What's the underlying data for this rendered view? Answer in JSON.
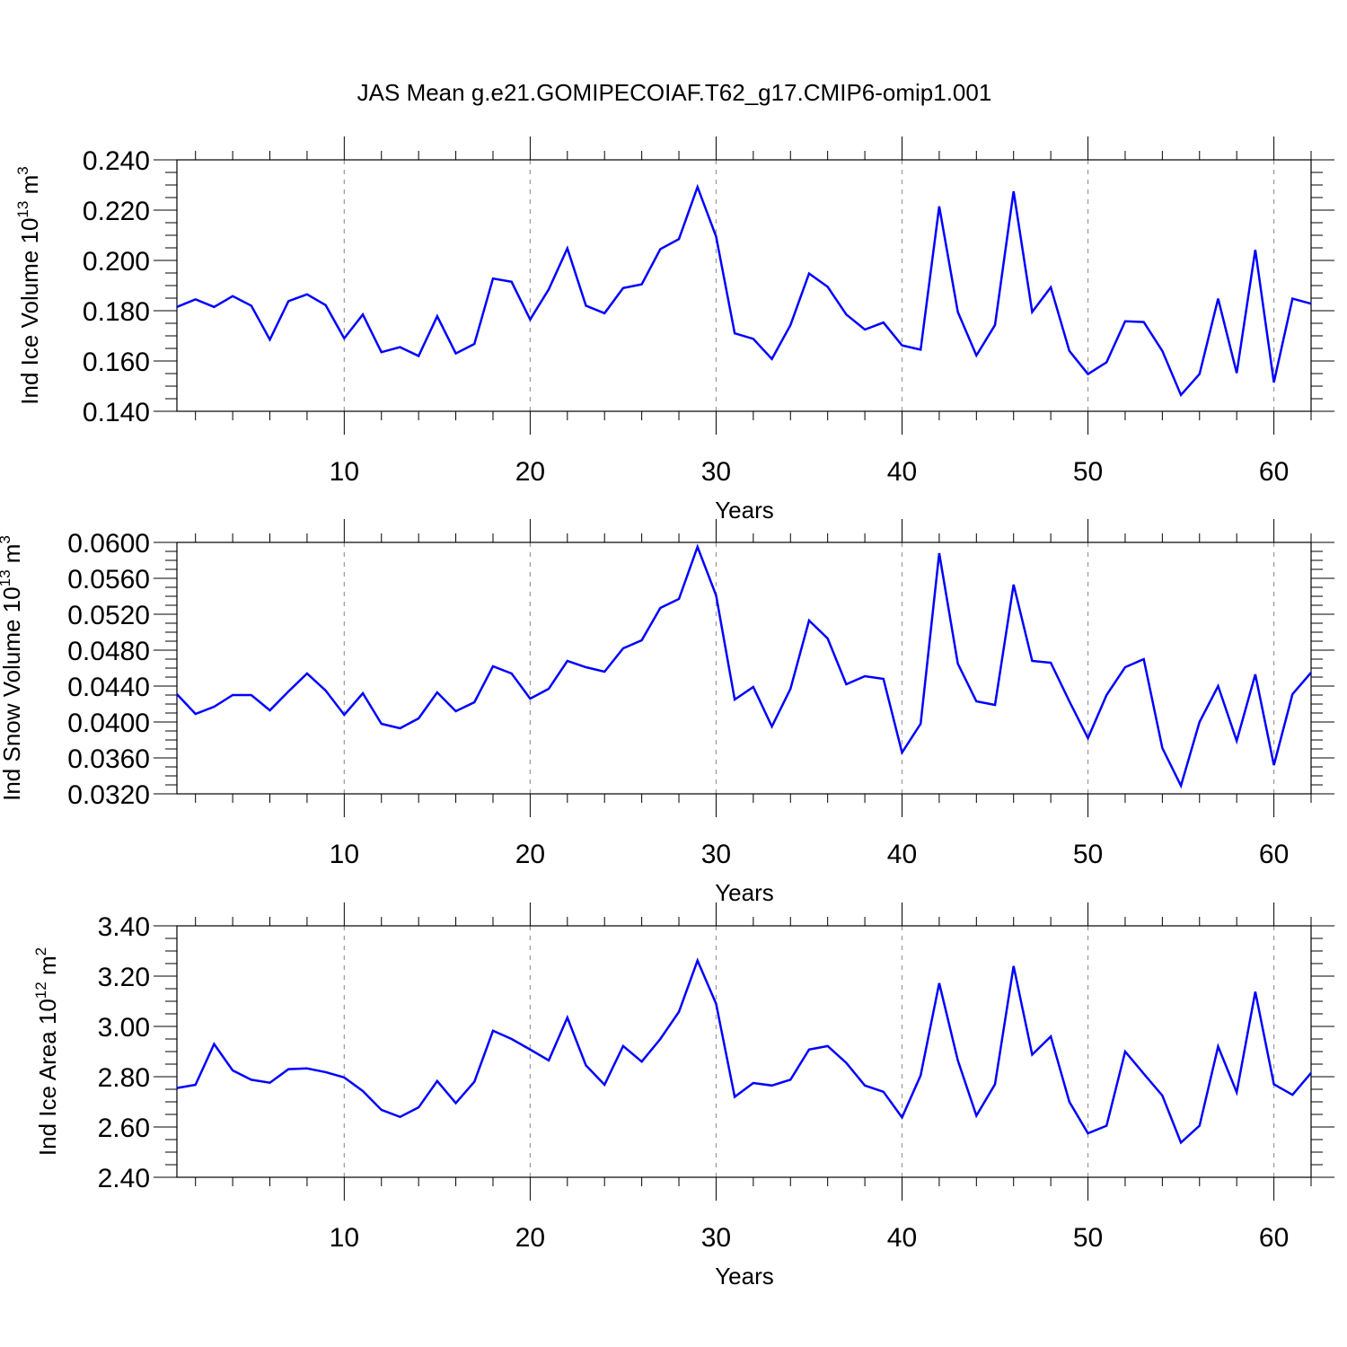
{
  "figure": {
    "title": "JAS Mean g.e21.GOMIPECOIAF.T62_g17.CMIP6-omip1.001",
    "line_color": "#0000ff"
  },
  "chart_data": [
    {
      "type": "line",
      "name": "ice-volume",
      "ylabel": "Ind Ice Volume 10",
      "ylabel_exp": "13",
      "ylabel_unit": " m",
      "ylabel_unit_exp": "3",
      "xlabel": "Years",
      "xlim": [
        1,
        62
      ],
      "ylim": [
        0.14,
        0.24
      ],
      "yticks": [
        0.14,
        0.16,
        0.18,
        0.2,
        0.22,
        0.24
      ],
      "ytick_labels": [
        "0.140",
        "0.160",
        "0.180",
        "0.200",
        "0.220",
        "0.240"
      ],
      "yminor_step": 0.005,
      "xticks": [
        10,
        20,
        30,
        40,
        50,
        60
      ],
      "xtick_labels": [
        "10",
        "20",
        "30",
        "40",
        "50",
        "60"
      ],
      "grid": "x dashed",
      "x": [
        1,
        2,
        3,
        4,
        5,
        6,
        7,
        8,
        9,
        10,
        11,
        12,
        13,
        14,
        15,
        16,
        17,
        18,
        19,
        20,
        21,
        22,
        23,
        24,
        25,
        26,
        27,
        28,
        29,
        30,
        31,
        32,
        33,
        34,
        35,
        36,
        37,
        38,
        39,
        40,
        41,
        42,
        43,
        44,
        45,
        46,
        47,
        48,
        49,
        50,
        51,
        52,
        53,
        54,
        55,
        56,
        57,
        58,
        59,
        60,
        61,
        62
      ],
      "values": [
        0.1815,
        0.1845,
        0.1815,
        0.1858,
        0.182,
        0.1685,
        0.1838,
        0.1865,
        0.1822,
        0.169,
        0.1785,
        0.1635,
        0.1655,
        0.162,
        0.1778,
        0.163,
        0.1668,
        0.1928,
        0.1915,
        0.1765,
        0.1885,
        0.2048,
        0.182,
        0.179,
        0.189,
        0.1905,
        0.2045,
        0.2085,
        0.2292,
        0.2095,
        0.171,
        0.1688,
        0.1608,
        0.1743,
        0.1948,
        0.1895,
        0.1785,
        0.1725,
        0.1753,
        0.1662,
        0.1645,
        0.2215,
        0.1795,
        0.1622,
        0.1743,
        0.2275,
        0.1795,
        0.1893,
        0.164,
        0.1548,
        0.1595,
        0.1758,
        0.1755,
        0.164,
        0.1465,
        0.1548,
        0.1848,
        0.1552,
        0.2042,
        0.1515,
        0.1848,
        0.1828
      ]
    },
    {
      "type": "line",
      "name": "snow-volume",
      "ylabel": "Ind Snow Volume 10",
      "ylabel_exp": "13",
      "ylabel_unit": " m",
      "ylabel_unit_exp": "3",
      "xlabel": "Years",
      "xlim": [
        1,
        62
      ],
      "ylim": [
        0.032,
        0.06
      ],
      "yticks": [
        0.032,
        0.036,
        0.04,
        0.044,
        0.048,
        0.052,
        0.056,
        0.06
      ],
      "ytick_labels": [
        "0.0320",
        "0.0360",
        "0.0400",
        "0.0440",
        "0.0480",
        "0.0520",
        "0.0560",
        "0.0600"
      ],
      "yminor_step": 0.001,
      "xticks": [
        10,
        20,
        30,
        40,
        50,
        60
      ],
      "xtick_labels": [
        "10",
        "20",
        "30",
        "40",
        "50",
        "60"
      ],
      "grid": "x dashed",
      "x": [
        1,
        2,
        3,
        4,
        5,
        6,
        7,
        8,
        9,
        10,
        11,
        12,
        13,
        14,
        15,
        16,
        17,
        18,
        19,
        20,
        21,
        22,
        23,
        24,
        25,
        26,
        27,
        28,
        29,
        30,
        31,
        32,
        33,
        34,
        35,
        36,
        37,
        38,
        39,
        40,
        41,
        42,
        43,
        44,
        45,
        46,
        47,
        48,
        49,
        50,
        51,
        52,
        53,
        54,
        55,
        56,
        57,
        58,
        59,
        60,
        61,
        62
      ],
      "values": [
        0.0431,
        0.0409,
        0.0417,
        0.043,
        0.043,
        0.0413,
        0.0434,
        0.0454,
        0.0435,
        0.0408,
        0.0432,
        0.0398,
        0.0393,
        0.0404,
        0.0433,
        0.0412,
        0.0422,
        0.0462,
        0.0454,
        0.0426,
        0.0437,
        0.0468,
        0.0461,
        0.0456,
        0.0482,
        0.0491,
        0.0527,
        0.0537,
        0.0595,
        0.0541,
        0.0425,
        0.0439,
        0.0395,
        0.0437,
        0.0513,
        0.0493,
        0.0442,
        0.0451,
        0.0448,
        0.0366,
        0.0398,
        0.0588,
        0.0465,
        0.0423,
        0.0419,
        0.0553,
        0.0468,
        0.0466,
        0.0423,
        0.0382,
        0.043,
        0.0461,
        0.047,
        0.0371,
        0.0329,
        0.04,
        0.044,
        0.0379,
        0.0453,
        0.0352,
        0.0431,
        0.0455
      ]
    },
    {
      "type": "line",
      "name": "ice-area",
      "ylabel": "Ind Ice Area 10",
      "ylabel_exp": "12",
      "ylabel_unit": " m",
      "ylabel_unit_exp": "2",
      "xlabel": "Years",
      "xlim": [
        1,
        62
      ],
      "ylim": [
        2.4,
        3.4
      ],
      "yticks": [
        2.4,
        2.6,
        2.8,
        3.0,
        3.2,
        3.4
      ],
      "ytick_labels": [
        "2.40",
        "2.60",
        "2.80",
        "3.00",
        "3.20",
        "3.40"
      ],
      "yminor_step": 0.05,
      "xticks": [
        10,
        20,
        30,
        40,
        50,
        60
      ],
      "xtick_labels": [
        "10",
        "20",
        "30",
        "40",
        "50",
        "60"
      ],
      "grid": "x dashed",
      "x": [
        1,
        2,
        3,
        4,
        5,
        6,
        7,
        8,
        9,
        10,
        11,
        12,
        13,
        14,
        15,
        16,
        17,
        18,
        19,
        20,
        21,
        22,
        23,
        24,
        25,
        26,
        27,
        28,
        29,
        30,
        31,
        32,
        33,
        34,
        35,
        36,
        37,
        38,
        39,
        40,
        41,
        42,
        43,
        44,
        45,
        46,
        47,
        48,
        49,
        50,
        51,
        52,
        53,
        54,
        55,
        56,
        57,
        58,
        59,
        60,
        61,
        62
      ],
      "values": [
        2.755,
        2.768,
        2.93,
        2.825,
        2.788,
        2.776,
        2.83,
        2.833,
        2.818,
        2.797,
        2.743,
        2.668,
        2.64,
        2.678,
        2.783,
        2.695,
        2.78,
        2.983,
        2.95,
        2.908,
        2.865,
        3.035,
        2.845,
        2.768,
        2.922,
        2.86,
        2.95,
        3.058,
        3.262,
        3.09,
        2.72,
        2.775,
        2.765,
        2.788,
        2.908,
        2.922,
        2.855,
        2.765,
        2.74,
        2.638,
        2.805,
        3.172,
        2.865,
        2.645,
        2.77,
        3.24,
        2.888,
        2.96,
        2.7,
        2.575,
        2.605,
        2.9,
        2.812,
        2.725,
        2.538,
        2.605,
        2.92,
        2.738,
        3.138,
        2.77,
        2.728,
        2.815
      ]
    }
  ]
}
